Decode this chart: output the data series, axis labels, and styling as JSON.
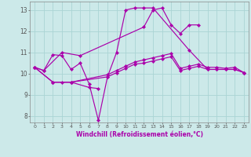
{
  "xlabel": "Windchill (Refroidissement éolien,°C)",
  "background_color": "#cce9e9",
  "grid_color": "#aad4d4",
  "line_color": "#aa00aa",
  "ylim": [
    7.7,
    13.4
  ],
  "yticks": [
    8,
    9,
    10,
    11,
    12,
    13
  ],
  "xlim": [
    -0.5,
    23.5
  ],
  "xticks": [
    0,
    1,
    2,
    3,
    4,
    5,
    6,
    7,
    8,
    9,
    10,
    11,
    12,
    13,
    14,
    15,
    16,
    17,
    18,
    19,
    20,
    21,
    22,
    23
  ],
  "s1_x": [
    0,
    1,
    3,
    5,
    12,
    13,
    14,
    15,
    16,
    17,
    18
  ],
  "s1_y": [
    10.3,
    10.15,
    11.0,
    10.85,
    12.2,
    13.0,
    13.1,
    12.3,
    11.9,
    12.3,
    12.3
  ],
  "s2_x": [
    0,
    1,
    2,
    3,
    4,
    5,
    6,
    7,
    8,
    9,
    10,
    11,
    12,
    13,
    17,
    19,
    20,
    21,
    22,
    23
  ],
  "s2_y": [
    10.3,
    10.15,
    10.9,
    10.85,
    10.2,
    10.5,
    9.5,
    7.8,
    9.85,
    11.0,
    13.0,
    13.1,
    13.1,
    13.1,
    11.1,
    10.2,
    10.2,
    10.2,
    10.2,
    10.05
  ],
  "s3_x": [
    2,
    3,
    4,
    6,
    7
  ],
  "s3_y": [
    9.6,
    9.6,
    9.6,
    9.35,
    9.3
  ],
  "s4_x": [
    0,
    2,
    4,
    8,
    9,
    10,
    11,
    12,
    13,
    14,
    15,
    16,
    17,
    18,
    19,
    20,
    21,
    22,
    23
  ],
  "s4_y": [
    10.3,
    9.6,
    9.6,
    9.85,
    10.05,
    10.25,
    10.45,
    10.5,
    10.6,
    10.7,
    10.8,
    10.15,
    10.25,
    10.35,
    10.2,
    10.2,
    10.2,
    10.2,
    10.05
  ],
  "s5_x": [
    0,
    2,
    4,
    8,
    9,
    10,
    11,
    12,
    13,
    14,
    15,
    16,
    17,
    18,
    19,
    20,
    21,
    22,
    23
  ],
  "s5_y": [
    10.3,
    9.6,
    9.6,
    9.95,
    10.15,
    10.35,
    10.55,
    10.65,
    10.75,
    10.85,
    10.95,
    10.25,
    10.35,
    10.45,
    10.3,
    10.3,
    10.25,
    10.3,
    10.05
  ]
}
